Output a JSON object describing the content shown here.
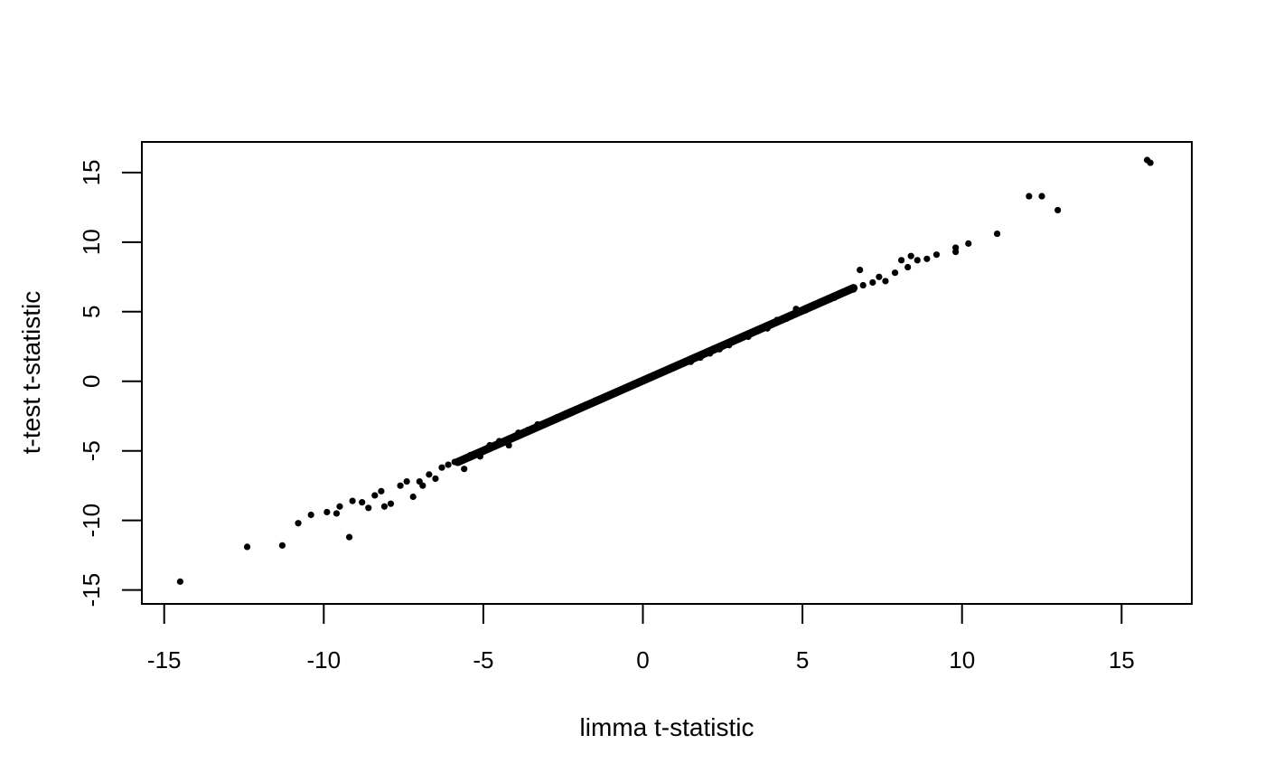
{
  "chart_data": {
    "type": "scatter",
    "title": "",
    "xlabel": "limma t-statistic",
    "ylabel": "t-test t-statistic",
    "xlim": [
      -15.7,
      17.2
    ],
    "ylim": [
      -16.0,
      17.2
    ],
    "x_ticks": [
      -15,
      -10,
      -5,
      0,
      5,
      10,
      15
    ],
    "y_ticks": [
      -15,
      -10,
      -5,
      0,
      5,
      10,
      15
    ],
    "x_tick_labels": [
      "-15",
      "-10",
      "-5",
      "0",
      "5",
      "10",
      "15"
    ],
    "y_tick_labels": [
      "-15",
      "-10",
      "-5",
      "0",
      "5",
      "10",
      "15"
    ],
    "grid": false,
    "legend": "none",
    "point_color": "#000000",
    "series": [
      {
        "points": [
          [
            -14.5,
            -14.4
          ],
          [
            -12.4,
            -11.9
          ],
          [
            -11.3,
            -11.8
          ],
          [
            -10.8,
            -10.2
          ],
          [
            -10.4,
            -9.6
          ],
          [
            -9.9,
            -9.4
          ],
          [
            -9.6,
            -9.5
          ],
          [
            -9.2,
            -11.2
          ],
          [
            -9.5,
            -9.0
          ],
          [
            -9.1,
            -8.6
          ],
          [
            -8.8,
            -8.7
          ],
          [
            -8.6,
            -9.1
          ],
          [
            -8.4,
            -8.2
          ],
          [
            -8.2,
            -7.9
          ],
          [
            -8.1,
            -9.0
          ],
          [
            -7.9,
            -8.8
          ],
          [
            -7.6,
            -7.5
          ],
          [
            -7.4,
            -7.2
          ],
          [
            -7.2,
            -8.3
          ],
          [
            -7.0,
            -7.2
          ],
          [
            -6.9,
            -7.5
          ],
          [
            -6.7,
            -6.7
          ],
          [
            -6.5,
            -7.0
          ],
          [
            -6.3,
            -6.2
          ],
          [
            -6.1,
            -6.0
          ],
          [
            -5.9,
            -5.8
          ],
          [
            -5.6,
            -6.3
          ],
          [
            -5.4,
            -5.3
          ],
          [
            -5.1,
            -5.4
          ],
          [
            -4.8,
            -4.6
          ],
          [
            -4.5,
            -4.3
          ],
          [
            -4.2,
            -4.6
          ],
          [
            -3.9,
            -3.7
          ],
          [
            -3.6,
            -3.5
          ],
          [
            -3.3,
            -3.1
          ],
          [
            -3.0,
            -3.0
          ],
          [
            -2.7,
            -2.6
          ],
          [
            -2.4,
            -2.3
          ],
          [
            -2.1,
            -2.0
          ],
          [
            -1.8,
            -1.7
          ],
          [
            -1.5,
            -1.4
          ],
          [
            -1.2,
            -1.1
          ],
          [
            -0.9,
            -0.9
          ],
          [
            -0.6,
            -0.6
          ],
          [
            -0.3,
            -0.3
          ],
          [
            0.0,
            0.0
          ],
          [
            0.3,
            0.3
          ],
          [
            0.6,
            0.6
          ],
          [
            0.9,
            0.9
          ],
          [
            1.2,
            1.2
          ],
          [
            1.5,
            1.4
          ],
          [
            1.8,
            1.7
          ],
          [
            2.1,
            2.0
          ],
          [
            2.4,
            2.3
          ],
          [
            2.7,
            2.6
          ],
          [
            3.0,
            3.0
          ],
          [
            3.3,
            3.2
          ],
          [
            3.6,
            3.6
          ],
          [
            3.9,
            3.8
          ],
          [
            4.2,
            4.4
          ],
          [
            4.5,
            4.5
          ],
          [
            4.8,
            5.2
          ],
          [
            5.1,
            5.1
          ],
          [
            5.4,
            5.5
          ],
          [
            5.7,
            5.8
          ],
          [
            6.0,
            6.0
          ],
          [
            6.3,
            6.4
          ],
          [
            6.6,
            6.6
          ],
          [
            6.8,
            8.0
          ],
          [
            6.9,
            6.9
          ],
          [
            7.2,
            7.1
          ],
          [
            7.4,
            7.5
          ],
          [
            7.6,
            7.2
          ],
          [
            7.9,
            7.8
          ],
          [
            8.1,
            8.7
          ],
          [
            8.3,
            8.2
          ],
          [
            8.4,
            9.0
          ],
          [
            8.6,
            8.7
          ],
          [
            8.9,
            8.8
          ],
          [
            9.2,
            9.1
          ],
          [
            9.8,
            9.6
          ],
          [
            9.8,
            9.3
          ],
          [
            10.2,
            9.9
          ],
          [
            11.1,
            10.6
          ],
          [
            12.1,
            13.3
          ],
          [
            12.5,
            13.3
          ],
          [
            13.0,
            12.3
          ],
          [
            15.8,
            15.9
          ],
          [
            15.9,
            15.7
          ]
        ]
      }
    ]
  }
}
